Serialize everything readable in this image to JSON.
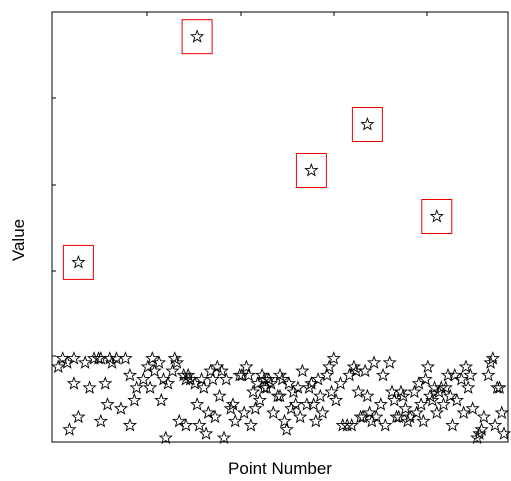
{
  "chart_data": {
    "type": "scatter",
    "title": "",
    "xlabel": "Point Number",
    "ylabel": "Value",
    "xlim": [
      0,
      200
    ],
    "ylim": [
      0,
      10
    ],
    "grid": false,
    "legend": "none",
    "marker": "star",
    "marker_color": "#000000",
    "highlight_color": "#ee0000",
    "highlighted": [
      {
        "x": 10,
        "y": 4.2
      },
      {
        "x": 63,
        "y": 9.6
      },
      {
        "x": 114,
        "y": 6.4
      },
      {
        "x": 139,
        "y": 7.5
      },
      {
        "x": 170,
        "y": 5.3
      }
    ],
    "series": [
      {
        "points": [
          [
            1,
            1.7
          ],
          [
            3,
            1.9
          ],
          [
            5,
            1.8
          ],
          [
            6,
            0.2
          ],
          [
            8,
            1.3
          ],
          [
            8,
            1.9
          ],
          [
            10,
            0.5
          ],
          [
            13,
            1.8
          ],
          [
            15,
            1.2
          ],
          [
            17,
            1.9
          ],
          [
            19,
            1.9
          ],
          [
            20,
            0.4
          ],
          [
            20,
            1.9
          ],
          [
            22,
            1.3
          ],
          [
            23,
            0.8
          ],
          [
            24,
            1.9
          ],
          [
            25,
            1.8
          ],
          [
            27,
            1.9
          ],
          [
            29,
            0.7
          ],
          [
            31,
            1.9
          ],
          [
            33,
            0.3
          ],
          [
            33,
            1.5
          ],
          [
            35,
            0.9
          ],
          [
            36,
            1.2
          ],
          [
            39,
            1.4
          ],
          [
            41,
            1.7
          ],
          [
            42,
            1.2
          ],
          [
            43,
            1.9
          ],
          [
            44,
            1.6
          ],
          [
            46,
            1.8
          ],
          [
            47,
            0.9
          ],
          [
            48,
            1.4
          ],
          [
            49,
            0.0
          ],
          [
            50,
            1.3
          ],
          [
            52,
            1.6
          ],
          [
            53,
            1.9
          ],
          [
            54,
            1.8
          ],
          [
            55,
            0.4
          ],
          [
            57,
            1.5
          ],
          [
            58,
            1.4
          ],
          [
            58,
            0.3
          ],
          [
            59,
            1.5
          ],
          [
            60,
            1.4
          ],
          [
            62,
            1.3
          ],
          [
            63,
            0.8
          ],
          [
            64,
            0.3
          ],
          [
            65,
            1.4
          ],
          [
            66,
            1.2
          ],
          [
            67,
            0.1
          ],
          [
            68,
            0.6
          ],
          [
            69,
            1.6
          ],
          [
            70,
            1.4
          ],
          [
            71,
            0.5
          ],
          [
            72,
            1.7
          ],
          [
            73,
            1.0
          ],
          [
            74,
            1.6
          ],
          [
            75,
            0.0
          ],
          [
            76,
            1.4
          ],
          [
            78,
            0.7
          ],
          [
            79,
            0.8
          ],
          [
            80,
            0.4
          ],
          [
            82,
            1.5
          ],
          [
            83,
            1.5
          ],
          [
            84,
            0.6
          ],
          [
            85,
            1.7
          ],
          [
            86,
            1.5
          ],
          [
            87,
            0.3
          ],
          [
            88,
            1.1
          ],
          [
            89,
            0.7
          ],
          [
            90,
            1.3
          ],
          [
            91,
            0.9
          ],
          [
            92,
            1.5
          ],
          [
            93,
            1.2
          ],
          [
            93,
            1.4
          ],
          [
            94,
            1.2
          ],
          [
            95,
            1.4
          ],
          [
            96,
            1.3
          ],
          [
            97,
            0.6
          ],
          [
            99,
            1.0
          ],
          [
            100,
            1.5
          ],
          [
            100,
            1.0
          ],
          [
            101,
            1.4
          ],
          [
            102,
            0.4
          ],
          [
            103,
            0.2
          ],
          [
            104,
            1.3
          ],
          [
            105,
            0.7
          ],
          [
            106,
            1.1
          ],
          [
            107,
            0.8
          ],
          [
            108,
            1.2
          ],
          [
            109,
            0.5
          ],
          [
            110,
            1.6
          ],
          [
            112,
            0.8
          ],
          [
            113,
            1.2
          ],
          [
            114,
            1.3
          ],
          [
            115,
            0.8
          ],
          [
            116,
            0.4
          ],
          [
            117,
            1.4
          ],
          [
            118,
            1.0
          ],
          [
            119,
            0.6
          ],
          [
            121,
            1.5
          ],
          [
            122,
            1.7
          ],
          [
            123,
            1.1
          ],
          [
            124,
            1.9
          ],
          [
            125,
            0.9
          ],
          [
            127,
            1.3
          ],
          [
            128,
            0.3
          ],
          [
            130,
            0.3
          ],
          [
            131,
            1.5
          ],
          [
            132,
            0.3
          ],
          [
            133,
            1.7
          ],
          [
            134,
            1.6
          ],
          [
            135,
            1.1
          ],
          [
            136,
            0.5
          ],
          [
            137,
            0.5
          ],
          [
            138,
            1.6
          ],
          [
            139,
            1.0
          ],
          [
            140,
            0.6
          ],
          [
            141,
            0.4
          ],
          [
            142,
            1.8
          ],
          [
            143,
            0.5
          ],
          [
            145,
            0.8
          ],
          [
            146,
            1.5
          ],
          [
            147,
            0.3
          ],
          [
            149,
            1.8
          ],
          [
            150,
            1.1
          ],
          [
            151,
            0.9
          ],
          [
            152,
            0.5
          ],
          [
            153,
            0.5
          ],
          [
            154,
            1.1
          ],
          [
            155,
            1.0
          ],
          [
            156,
            0.7
          ],
          [
            157,
            0.4
          ],
          [
            158,
            0.5
          ],
          [
            160,
            1.1
          ],
          [
            161,
            0.6
          ],
          [
            162,
            1.3
          ],
          [
            163,
            0.8
          ],
          [
            164,
            0.4
          ],
          [
            165,
            1.4
          ],
          [
            166,
            1.7
          ],
          [
            167,
            1.0
          ],
          [
            168,
            0.9
          ],
          [
            169,
            1.2
          ],
          [
            170,
            0.6
          ],
          [
            171,
            1.1
          ],
          [
            172,
            1.2
          ],
          [
            173,
            0.8
          ],
          [
            174,
            1.2
          ],
          [
            175,
            1.5
          ],
          [
            176,
            1.0
          ],
          [
            177,
            0.3
          ],
          [
            178,
            1.5
          ],
          [
            179,
            0.9
          ],
          [
            181,
            1.4
          ],
          [
            182,
            0.6
          ],
          [
            183,
            1.7
          ],
          [
            184,
            1.2
          ],
          [
            185,
            1.5
          ],
          [
            186,
            0.7
          ],
          [
            188,
            0.0
          ],
          [
            189,
            0.1
          ],
          [
            190,
            0.2
          ],
          [
            191,
            0.5
          ],
          [
            193,
            1.5
          ],
          [
            194,
            1.8
          ],
          [
            195,
            1.9
          ],
          [
            196,
            0.3
          ],
          [
            197,
            1.2
          ],
          [
            198,
            1.2
          ],
          [
            199,
            0.6
          ],
          [
            200,
            0.1
          ]
        ]
      }
    ]
  }
}
